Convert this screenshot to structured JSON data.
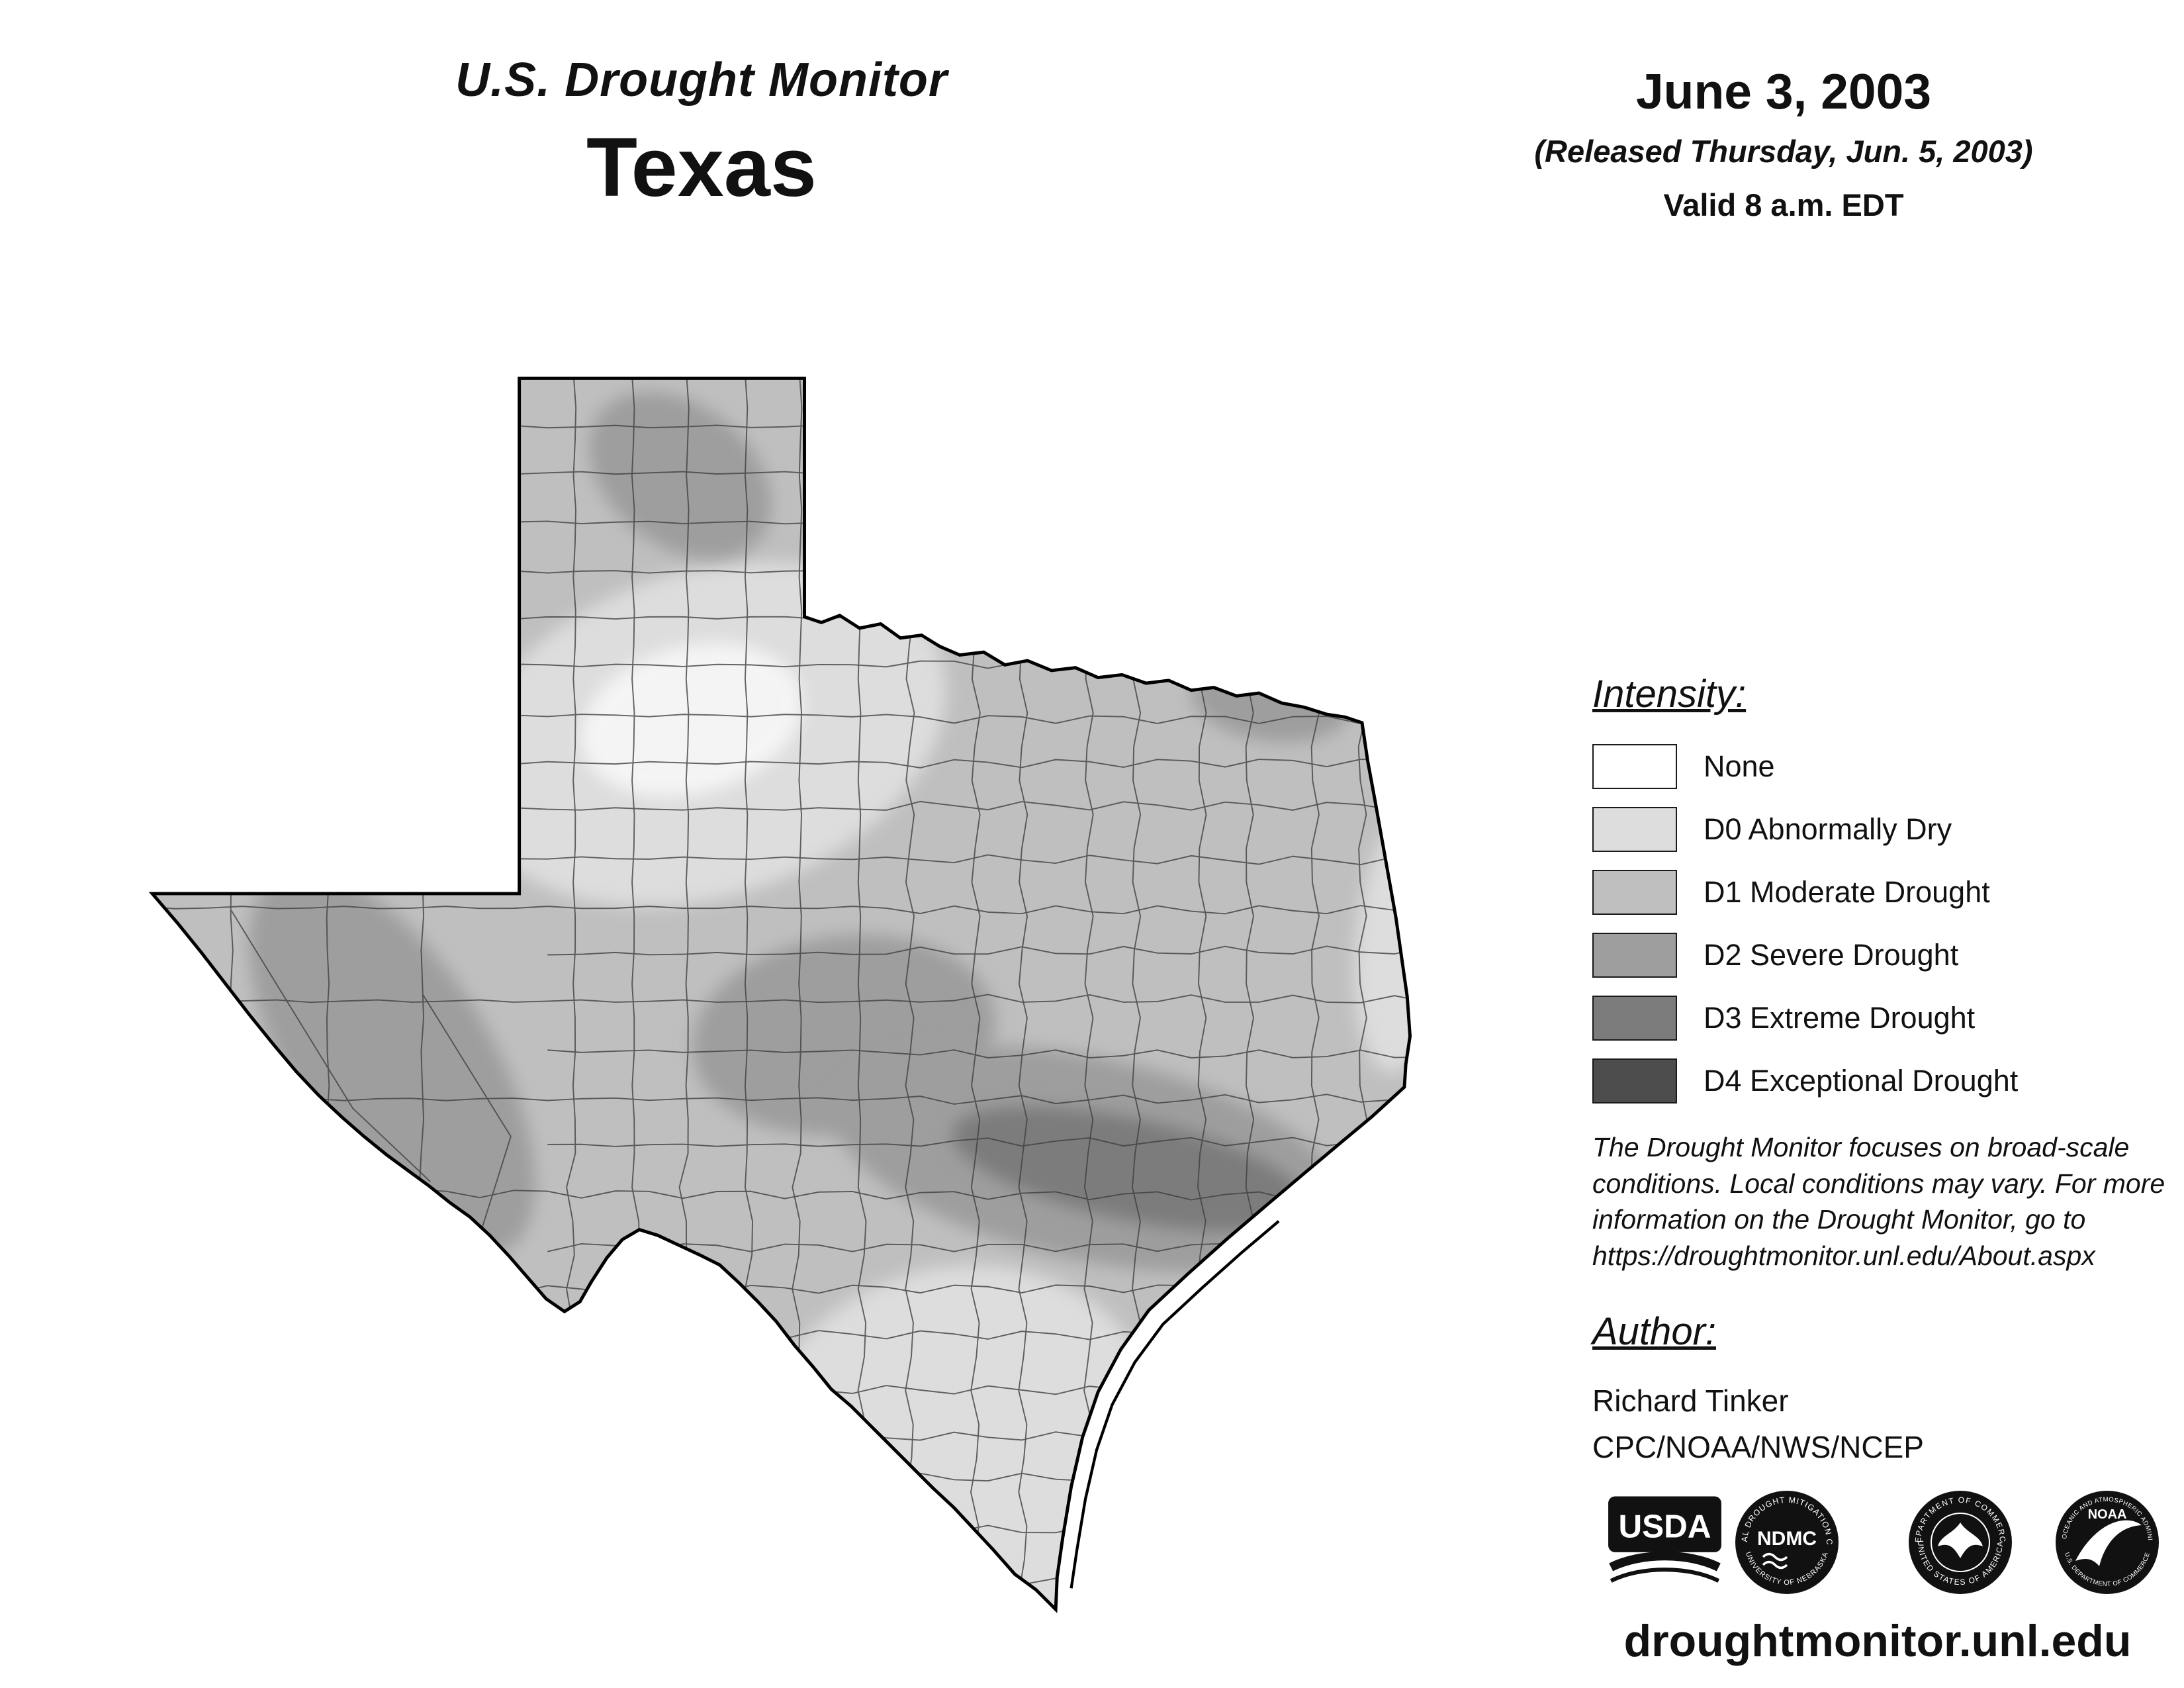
{
  "header": {
    "title": "U.S. Drought Monitor",
    "region": "Texas",
    "date": "June 3, 2003",
    "released": "(Released Thursday, Jun. 5, 2003)",
    "valid": "Valid 8 a.m. EDT"
  },
  "legend": {
    "heading": "Intensity:",
    "items": [
      {
        "code": "None",
        "label": "None",
        "color": "#ffffff"
      },
      {
        "code": "D0",
        "label": "D0 Abnormally Dry",
        "color": "#dddddd"
      },
      {
        "code": "D1",
        "label": "D1 Moderate Drought",
        "color": "#bfbfbf"
      },
      {
        "code": "D2",
        "label": "D2 Severe Drought",
        "color": "#9e9e9e"
      },
      {
        "code": "D3",
        "label": "D3 Extreme Drought",
        "color": "#7b7b7b"
      },
      {
        "code": "D4",
        "label": "D4 Exceptional Drought",
        "color": "#4d4d4d"
      }
    ]
  },
  "note": "The Drought Monitor focuses on broad-scale conditions. Local conditions may vary. For more information on the Drought Monitor, go to https://droughtmonitor.unl.edu/About.aspx",
  "author": {
    "heading": "Author:",
    "name": "Richard Tinker",
    "org": "CPC/NOAA/NWS/NCEP"
  },
  "logos": {
    "usda": {
      "label": "USDA"
    },
    "ndmc": {
      "label": "NDMC",
      "ring_top": "NATIONAL DROUGHT MITIGATION CENTER",
      "ring_bottom": "UNIVERSITY OF NEBRASKA"
    },
    "commerce": {
      "ring_top": "DEPARTMENT OF COMMERCE",
      "ring_bottom": "UNITED STATES OF AMERICA"
    },
    "noaa": {
      "label": "NOAA",
      "ring_top": "NATIONAL OCEANIC AND ATMOSPHERIC ADMINISTRATION",
      "ring_bottom": "U.S. DEPARTMENT OF COMMERCE"
    }
  },
  "website": "droughtmonitor.unl.edu"
}
